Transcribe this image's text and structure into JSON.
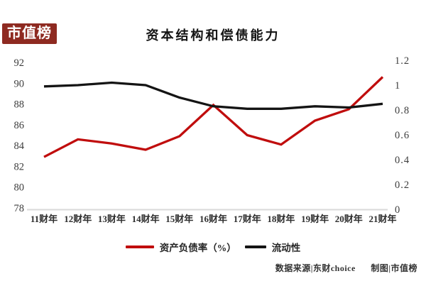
{
  "badge": {
    "label": "市值榜"
  },
  "title": "资本结构和偿债能力",
  "legend": {
    "items": [
      {
        "label": "资产负债率（%）",
        "color": "#c00d0d"
      },
      {
        "label": "流动性",
        "color": "#141414"
      }
    ]
  },
  "footer": {
    "source": "数据来源|东财choice",
    "credit": "制图|市值榜"
  },
  "colors": {
    "badge_bg": "#8e2a21",
    "red_line": "#c00d0d",
    "black_line": "#141414",
    "axis_line": "#d9d9d9",
    "tick_text": "#3c3c3c"
  },
  "chart_data": {
    "type": "line",
    "title": "资本结构和偿债能力",
    "categories": [
      "11财年",
      "12财年",
      "13财年",
      "14财年",
      "15财年",
      "16财年",
      "17财年",
      "18财年",
      "19财年",
      "20财年",
      "21财年"
    ],
    "series": [
      {
        "name": "资产负债率（%）",
        "axis": "left",
        "color": "#c00d0d",
        "values": [
          82.9,
          84.6,
          84.2,
          83.6,
          84.9,
          87.9,
          85.0,
          84.1,
          86.4,
          87.5,
          90.6
        ]
      },
      {
        "name": "流动性",
        "axis": "right",
        "color": "#141414",
        "values": [
          0.99,
          1.0,
          1.02,
          1.0,
          0.9,
          0.83,
          0.81,
          0.81,
          0.83,
          0.82,
          0.85
        ]
      }
    ],
    "left_axis": {
      "min": 78,
      "max": 92,
      "tick_labels": [
        "92",
        "90",
        "88",
        "86",
        "84",
        "82",
        "80",
        "78"
      ]
    },
    "right_axis": {
      "min": 0,
      "max": 1.2,
      "tick_labels": [
        "1.2",
        "1",
        "0.8",
        "0.6",
        "0.4",
        "0.2",
        "0"
      ]
    },
    "grid": false,
    "legend_position": "bottom"
  }
}
